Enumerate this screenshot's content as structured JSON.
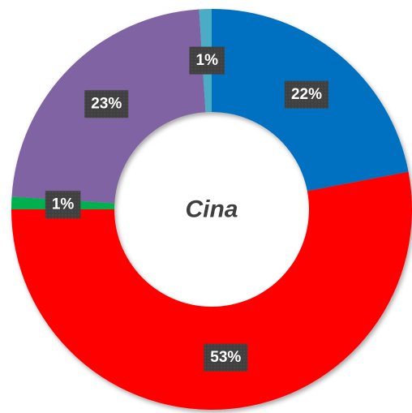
{
  "chart_data": {
    "type": "donut",
    "title": "Cina",
    "categories": [
      "22%",
      "53%",
      "1%",
      "23%",
      "1%"
    ],
    "values": [
      22,
      53,
      1,
      23,
      1
    ],
    "value_labels": [
      "22%",
      "53%",
      "1%",
      "23%",
      "1%"
    ],
    "colors": [
      "#0070c0",
      "#ff0000",
      "#00b050",
      "#8064a2",
      "#4bacc6"
    ]
  }
}
